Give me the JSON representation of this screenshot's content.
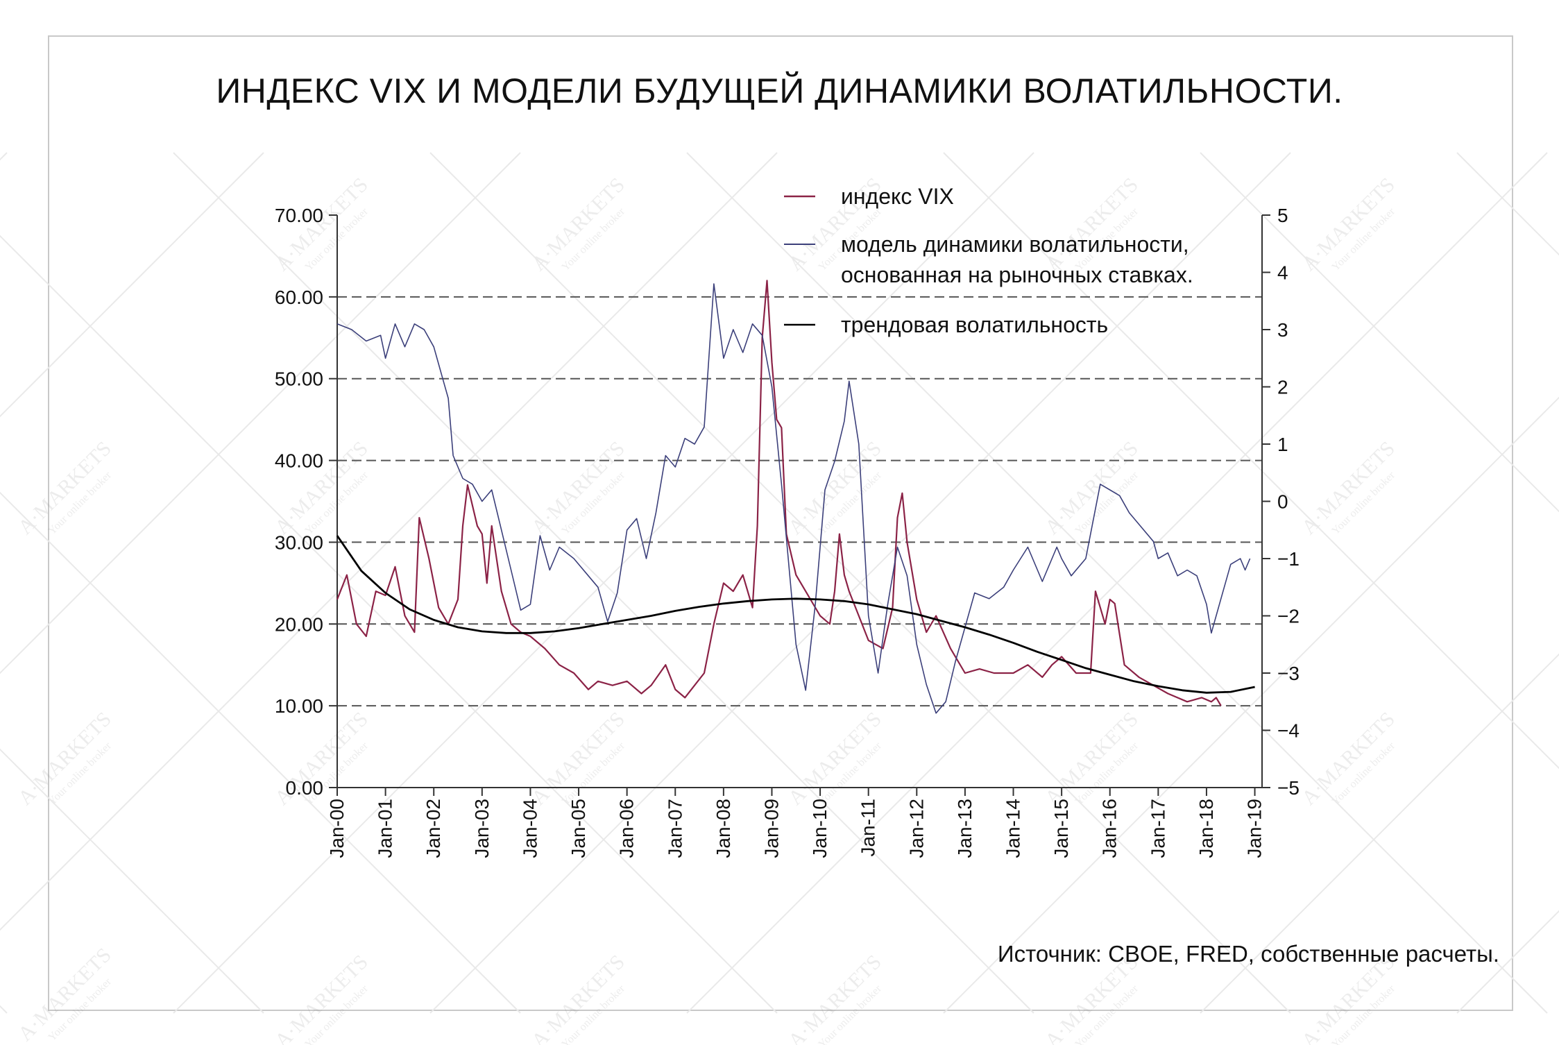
{
  "title": "ИНДЕКС VIX И МОДЕЛИ БУДУЩЕЙ ДИНАМИКИ ВОЛАТИЛЬНОСТИ.",
  "source": "Источник: CBOE, FRED, собственные расчеты.",
  "watermark": {
    "brand": "A·MARKETS",
    "tagline": "Your online broker"
  },
  "colors": {
    "vix": "#8b2246",
    "model": "#3b3f7a",
    "trend": "#000000",
    "grid": "#555555"
  },
  "chart_data": {
    "type": "line",
    "x_start": "Jan-00",
    "x_end": "Jan-19",
    "x_ticks": [
      "Jan-00",
      "Jan-01",
      "Jan-02",
      "Jan-03",
      "Jan-04",
      "Jan-05",
      "Jan-06",
      "Jan-07",
      "Jan-08",
      "Jan-09",
      "Jan-10",
      "Jan-11",
      "Jan-12",
      "Jan-13",
      "Jan-14",
      "Jan-15",
      "Jan-16",
      "Jan-17",
      "Jan-18",
      "Jan-19"
    ],
    "y_left": {
      "min": 0,
      "max": 70,
      "ticks": [
        "0.00",
        "10.00",
        "20.00",
        "30.00",
        "40.00",
        "50.00",
        "60.00",
        "70.00"
      ]
    },
    "y_right": {
      "min": -5,
      "max": 5,
      "ticks": [
        "-5",
        "-4",
        "-3",
        "-2",
        "-1",
        "0",
        "1",
        "2",
        "3",
        "4",
        "5"
      ]
    },
    "grid": "horizontal dashed at 10, 20, 30, 40, 50, 60",
    "legend_position": "top-right",
    "series": [
      {
        "name": "индекс VIX",
        "axis": "left",
        "x": [
          2000.0,
          2000.2,
          2000.4,
          2000.6,
          2000.8,
          2001.0,
          2001.2,
          2001.4,
          2001.6,
          2001.7,
          2001.9,
          2002.1,
          2002.3,
          2002.5,
          2002.6,
          2002.7,
          2002.9,
          2003.0,
          2003.1,
          2003.2,
          2003.4,
          2003.6,
          2003.8,
          2004.0,
          2004.3,
          2004.6,
          2004.9,
          2005.2,
          2005.4,
          2005.7,
          2006.0,
          2006.3,
          2006.5,
          2006.8,
          2007.0,
          2007.2,
          2007.4,
          2007.6,
          2007.8,
          2008.0,
          2008.2,
          2008.4,
          2008.6,
          2008.7,
          2008.8,
          2008.9,
          2009.0,
          2009.1,
          2009.2,
          2009.3,
          2009.5,
          2009.7,
          2010.0,
          2010.2,
          2010.3,
          2010.4,
          2010.5,
          2010.6,
          2010.8,
          2011.0,
          2011.3,
          2011.5,
          2011.6,
          2011.7,
          2011.8,
          2012.0,
          2012.2,
          2012.4,
          2012.7,
          2013.0,
          2013.3,
          2013.6,
          2014.0,
          2014.3,
          2014.6,
          2014.8,
          2015.0,
          2015.3,
          2015.6,
          2015.7,
          2015.9,
          2016.0,
          2016.1,
          2016.3,
          2016.6,
          2016.9,
          2017.2,
          2017.6,
          2017.9,
          2018.1,
          2018.2,
          2018.3
        ],
        "values": [
          23.0,
          26.0,
          20.0,
          18.5,
          24.0,
          23.5,
          27.0,
          21.0,
          19.0,
          33.0,
          28.0,
          22.0,
          20.0,
          23.0,
          32.0,
          37.0,
          32.0,
          31.0,
          25.0,
          32.0,
          24.0,
          20.0,
          19.0,
          18.5,
          17.0,
          15.0,
          14.0,
          12.0,
          13.0,
          12.5,
          13.0,
          11.5,
          12.5,
          15.0,
          12.0,
          11.0,
          12.5,
          14.0,
          20.0,
          25.0,
          24.0,
          26.0,
          22.0,
          32.0,
          55.0,
          62.0,
          52.0,
          45.0,
          44.0,
          31.0,
          26.0,
          24.0,
          21.0,
          20.0,
          24.0,
          31.0,
          26.0,
          24.0,
          21.0,
          18.0,
          17.0,
          22.0,
          33.0,
          36.0,
          30.0,
          23.0,
          19.0,
          21.0,
          17.0,
          14.0,
          14.5,
          14.0,
          14.0,
          15.0,
          13.5,
          15.0,
          16.0,
          14.0,
          14.0,
          24.0,
          20.0,
          23.0,
          22.5,
          15.0,
          13.5,
          12.5,
          11.5,
          10.5,
          11.0,
          10.5,
          11.0,
          10.0
        ]
      },
      {
        "name": "модель динамики волатильности, основанная на рыночных ставках.",
        "axis": "right",
        "x": [
          2000.0,
          2000.3,
          2000.6,
          2000.9,
          2001.0,
          2001.2,
          2001.4,
          2001.6,
          2001.8,
          2002.0,
          2002.2,
          2002.3,
          2002.4,
          2002.6,
          2002.8,
          2003.0,
          2003.2,
          2003.4,
          2003.6,
          2003.8,
          2004.0,
          2004.2,
          2004.4,
          2004.6,
          2004.9,
          2005.2,
          2005.4,
          2005.6,
          2005.8,
          2006.0,
          2006.2,
          2006.4,
          2006.6,
          2006.8,
          2007.0,
          2007.2,
          2007.4,
          2007.6,
          2007.8,
          2008.0,
          2008.2,
          2008.4,
          2008.6,
          2008.8,
          2009.0,
          2009.2,
          2009.5,
          2009.7,
          2009.9,
          2010.1,
          2010.3,
          2010.5,
          2010.6,
          2010.8,
          2011.0,
          2011.2,
          2011.4,
          2011.6,
          2011.8,
          2012.0,
          2012.2,
          2012.4,
          2012.6,
          2012.8,
          2013.0,
          2013.2,
          2013.5,
          2013.8,
          2014.0,
          2014.3,
          2014.6,
          2014.9,
          2015.0,
          2015.2,
          2015.5,
          2015.8,
          2016.0,
          2016.2,
          2016.4,
          2016.6,
          2016.9,
          2017.0,
          2017.2,
          2017.4,
          2017.6,
          2017.8,
          2018.0,
          2018.1,
          2018.3,
          2018.5,
          2018.7,
          2018.8,
          2018.9
        ],
        "values": [
          3.1,
          3.0,
          2.8,
          2.9,
          2.5,
          3.1,
          2.7,
          3.1,
          3.0,
          2.7,
          2.1,
          1.8,
          0.8,
          0.4,
          0.3,
          0.0,
          0.2,
          -0.5,
          -1.2,
          -1.9,
          -1.8,
          -0.6,
          -1.2,
          -0.8,
          -1.0,
          -1.3,
          -1.5,
          -2.1,
          -1.6,
          -0.5,
          -0.3,
          -1.0,
          -0.2,
          0.8,
          0.6,
          1.1,
          1.0,
          1.3,
          3.8,
          2.5,
          3.0,
          2.6,
          3.1,
          2.9,
          2.0,
          0.3,
          -2.5,
          -3.3,
          -1.8,
          0.2,
          0.7,
          1.4,
          2.1,
          1.0,
          -2.0,
          -3.0,
          -1.8,
          -0.8,
          -1.3,
          -2.5,
          -3.2,
          -3.7,
          -3.5,
          -2.8,
          -2.2,
          -1.6,
          -1.7,
          -1.5,
          -1.2,
          -0.8,
          -1.4,
          -0.8,
          -1.0,
          -1.3,
          -1.0,
          0.3,
          0.2,
          0.1,
          -0.2,
          -0.4,
          -0.7,
          -1.0,
          -0.9,
          -1.3,
          -1.2,
          -1.3,
          -1.8,
          -2.3,
          -1.7,
          -1.1,
          -1.0,
          -1.2,
          -1.0
        ]
      },
      {
        "name": "трендовая волатильность",
        "axis": "left",
        "x": [
          2000.0,
          2000.5,
          2001.0,
          2001.5,
          2002.0,
          2002.5,
          2003.0,
          2003.5,
          2004.0,
          2004.5,
          2005.0,
          2005.5,
          2006.0,
          2006.5,
          2007.0,
          2007.5,
          2008.0,
          2008.5,
          2009.0,
          2009.5,
          2010.0,
          2010.5,
          2011.0,
          2011.5,
          2012.0,
          2012.5,
          2013.0,
          2013.5,
          2014.0,
          2014.5,
          2015.0,
          2015.5,
          2016.0,
          2016.5,
          2017.0,
          2017.5,
          2018.0,
          2018.5,
          2019.0
        ],
        "values": [
          30.8,
          26.5,
          23.8,
          21.8,
          20.5,
          19.6,
          19.1,
          18.9,
          18.9,
          19.1,
          19.5,
          20.0,
          20.5,
          21.0,
          21.6,
          22.1,
          22.5,
          22.8,
          23.0,
          23.1,
          23.0,
          22.8,
          22.4,
          21.8,
          21.2,
          20.4,
          19.6,
          18.7,
          17.7,
          16.6,
          15.6,
          14.6,
          13.8,
          13.0,
          12.4,
          11.9,
          11.6,
          11.7,
          12.3
        ]
      }
    ]
  }
}
